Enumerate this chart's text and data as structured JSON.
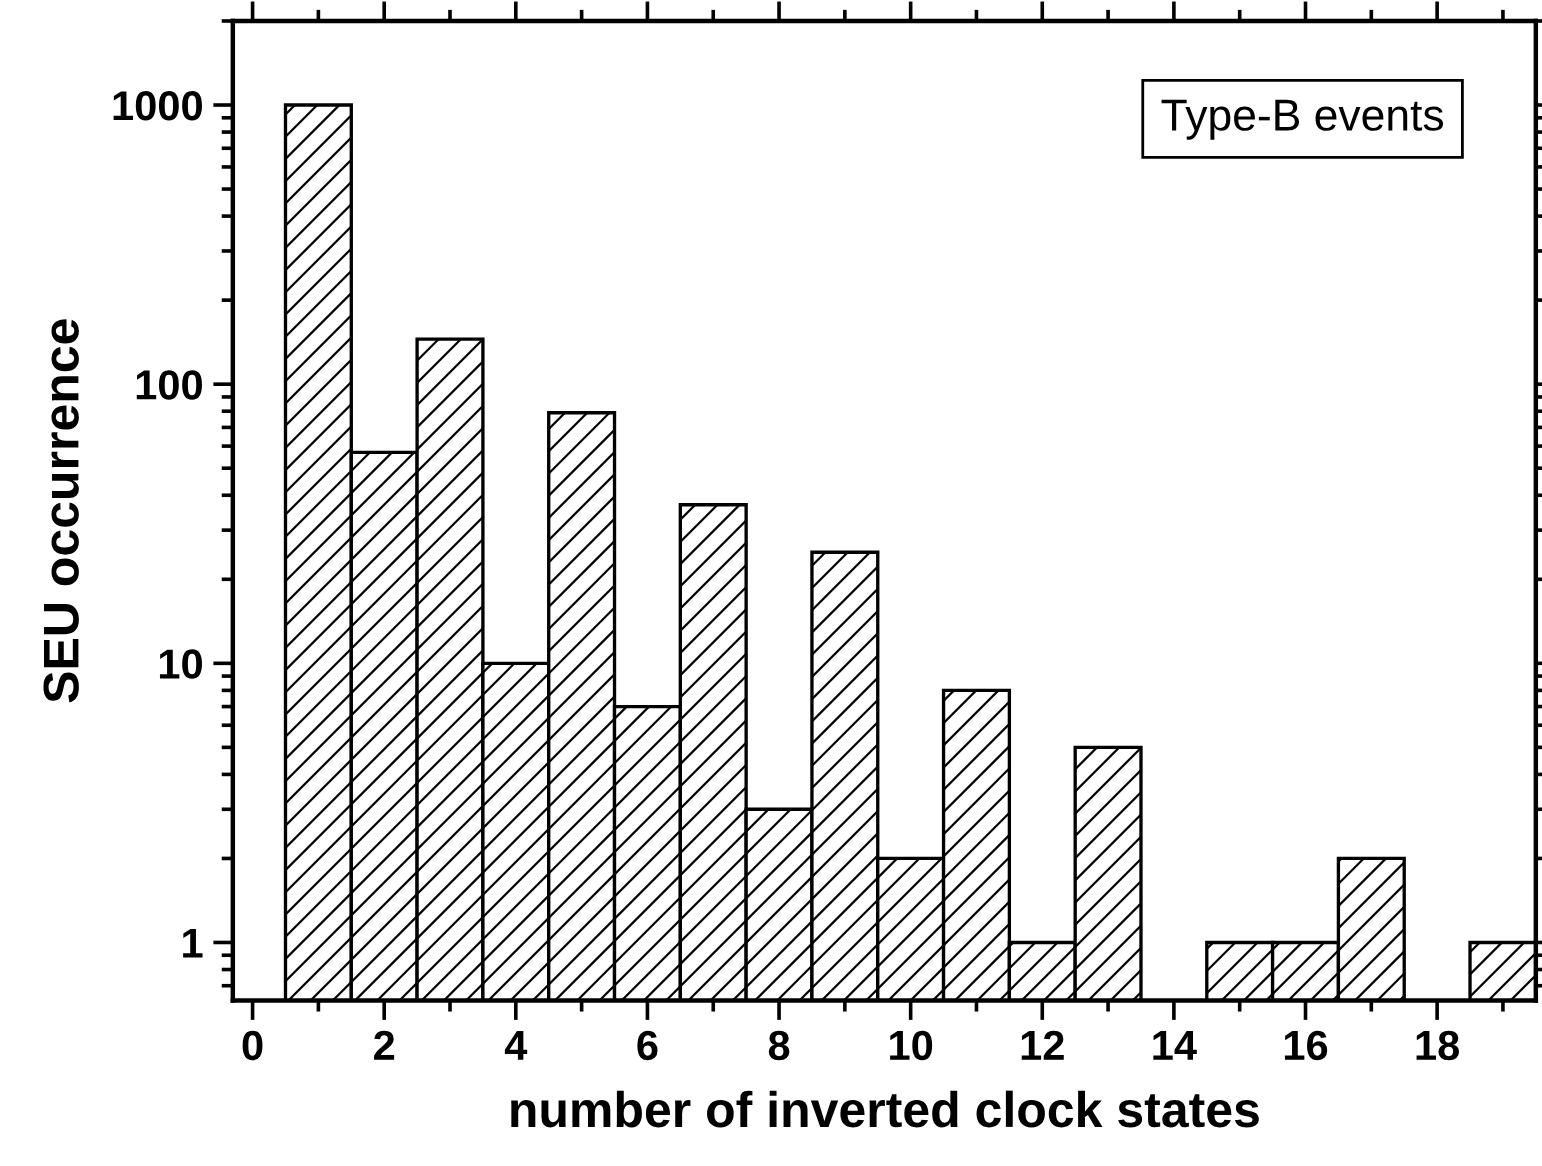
{
  "chart_data": {
    "type": "histogram",
    "xlabel": "number of inverted clock states",
    "ylabel": "SEU occurrence",
    "annotations": [
      "Type-B events"
    ],
    "bins": [
      0.5,
      1.5,
      2.5,
      3.5,
      4.5,
      5.5,
      6.5,
      7.5,
      8.5,
      9.5,
      10.5,
      11.5,
      12.5,
      13.5,
      14.5,
      15.5,
      16.5,
      17.5,
      18.5,
      19.5
    ],
    "values": [
      1000,
      57,
      145,
      10,
      79,
      7,
      37,
      3,
      25,
      2,
      8,
      1,
      5,
      null,
      1,
      1,
      2,
      null,
      1
    ],
    "color": "#000000",
    "log": "y",
    "grid": false,
    "xlim": [
      -0.3,
      19.5
    ],
    "xticks": [
      0,
      2,
      4,
      6,
      8,
      10,
      12,
      14,
      16,
      18
    ],
    "ylim": [
      0.62,
      2000
    ],
    "yticks": [
      1,
      10,
      100,
      1000
    ]
  }
}
